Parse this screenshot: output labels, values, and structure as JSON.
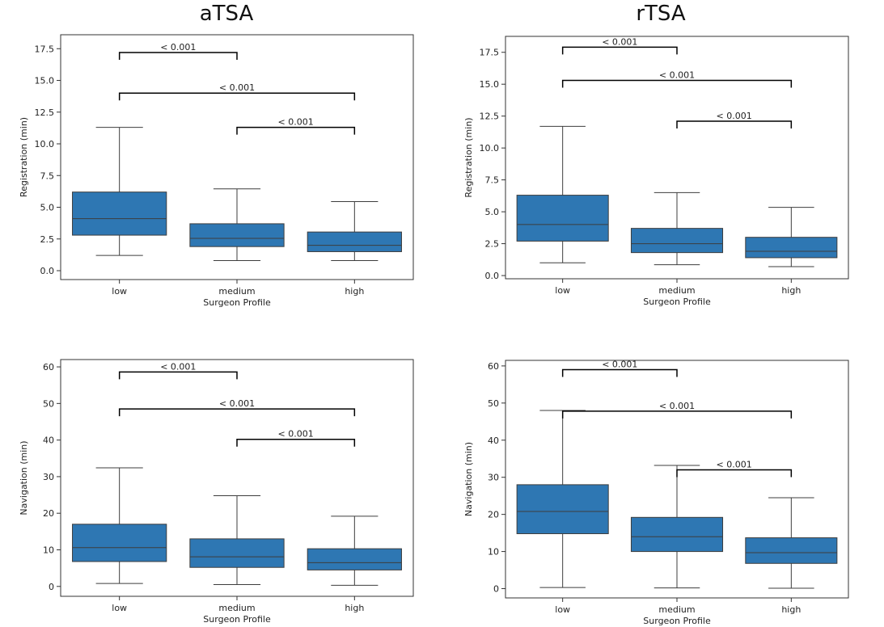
{
  "columns": [
    "aTSA",
    "rTSA"
  ],
  "chart_data": [
    {
      "type": "box",
      "xlabel": "Surgeon Profile",
      "ylabel": "Registration (min)",
      "categories": [
        "low",
        "medium",
        "high"
      ],
      "ylim": [
        -0.7,
        18.6
      ],
      "yticks": [
        0.0,
        2.5,
        5.0,
        7.5,
        10.0,
        12.5,
        15.0,
        17.5
      ],
      "tick_decimals": 1,
      "boxes": [
        {
          "whisker_low": 1.2,
          "q1": 2.8,
          "median": 4.1,
          "q3": 6.2,
          "whisker_high": 11.3
        },
        {
          "whisker_low": 0.8,
          "q1": 1.9,
          "median": 2.55,
          "q3": 3.7,
          "whisker_high": 6.45
        },
        {
          "whisker_low": 0.8,
          "q1": 1.5,
          "median": 2.0,
          "q3": 3.05,
          "whisker_high": 5.45
        }
      ],
      "annotations": [
        {
          "from": 0,
          "to": 1,
          "y": 17.2,
          "label": "< 0.001"
        },
        {
          "from": 0,
          "to": 2,
          "y": 14.0,
          "label": "< 0.001"
        },
        {
          "from": 1,
          "to": 2,
          "y": 11.3,
          "label": "< 0.001"
        }
      ]
    },
    {
      "type": "box",
      "xlabel": "Surgeon Profile",
      "ylabel": "Registration (min)",
      "categories": [
        "low",
        "medium",
        "high"
      ],
      "ylim": [
        -0.25,
        18.75
      ],
      "yticks": [
        0.0,
        2.5,
        5.0,
        7.5,
        10.0,
        12.5,
        15.0,
        17.5
      ],
      "tick_decimals": 1,
      "boxes": [
        {
          "whisker_low": 1.0,
          "q1": 2.7,
          "median": 4.0,
          "q3": 6.3,
          "whisker_high": 11.7
        },
        {
          "whisker_low": 0.85,
          "q1": 1.8,
          "median": 2.5,
          "q3": 3.7,
          "whisker_high": 6.5
        },
        {
          "whisker_low": 0.7,
          "q1": 1.4,
          "median": 1.9,
          "q3": 3.0,
          "whisker_high": 5.35
        }
      ],
      "annotations": [
        {
          "from": 0,
          "to": 1,
          "y": 17.9,
          "label": "< 0.001"
        },
        {
          "from": 0,
          "to": 2,
          "y": 15.3,
          "label": "< 0.001"
        },
        {
          "from": 1,
          "to": 2,
          "y": 12.1,
          "label": "< 0.001"
        }
      ]
    },
    {
      "type": "box",
      "xlabel": "Surgeon Profile",
      "ylabel": "Navigation (min)",
      "categories": [
        "low",
        "medium",
        "high"
      ],
      "ylim": [
        -2.7,
        62.0
      ],
      "yticks": [
        0,
        10,
        20,
        30,
        40,
        50,
        60
      ],
      "tick_decimals": 0,
      "boxes": [
        {
          "whisker_low": 0.8,
          "q1": 6.8,
          "median": 10.6,
          "q3": 17.0,
          "whisker_high": 32.4
        },
        {
          "whisker_low": 0.5,
          "q1": 5.2,
          "median": 8.1,
          "q3": 13.0,
          "whisker_high": 24.8
        },
        {
          "whisker_low": 0.3,
          "q1": 4.5,
          "median": 6.5,
          "q3": 10.3,
          "whisker_high": 19.2
        }
      ],
      "annotations": [
        {
          "from": 0,
          "to": 1,
          "y": 58.6,
          "label": "< 0.001"
        },
        {
          "from": 0,
          "to": 2,
          "y": 48.5,
          "label": "< 0.001"
        },
        {
          "from": 1,
          "to": 2,
          "y": 40.2,
          "label": "< 0.001"
        }
      ]
    },
    {
      "type": "box",
      "xlabel": "Surgeon Profile",
      "ylabel": "Navigation (min)",
      "categories": [
        "low",
        "medium",
        "high"
      ],
      "ylim": [
        -2.5,
        61.5
      ],
      "yticks": [
        0,
        10,
        20,
        30,
        40,
        50,
        60
      ],
      "tick_decimals": 0,
      "boxes": [
        {
          "whisker_low": 0.3,
          "q1": 14.8,
          "median": 20.8,
          "q3": 28.0,
          "whisker_high": 48.0
        },
        {
          "whisker_low": 0.2,
          "q1": 10.0,
          "median": 14.0,
          "q3": 19.2,
          "whisker_high": 33.2
        },
        {
          "whisker_low": 0.1,
          "q1": 6.8,
          "median": 9.7,
          "q3": 13.7,
          "whisker_high": 24.5
        }
      ],
      "annotations": [
        {
          "from": 0,
          "to": 1,
          "y": 59.0,
          "label": "< 0.001"
        },
        {
          "from": 0,
          "to": 2,
          "y": 47.8,
          "label": "< 0.001"
        },
        {
          "from": 1,
          "to": 2,
          "y": 32.0,
          "label": "< 0.001"
        }
      ]
    }
  ],
  "colors": {
    "box_fill": "#2e77b3",
    "line": "#3d3d3d",
    "annotation": "#000000"
  }
}
